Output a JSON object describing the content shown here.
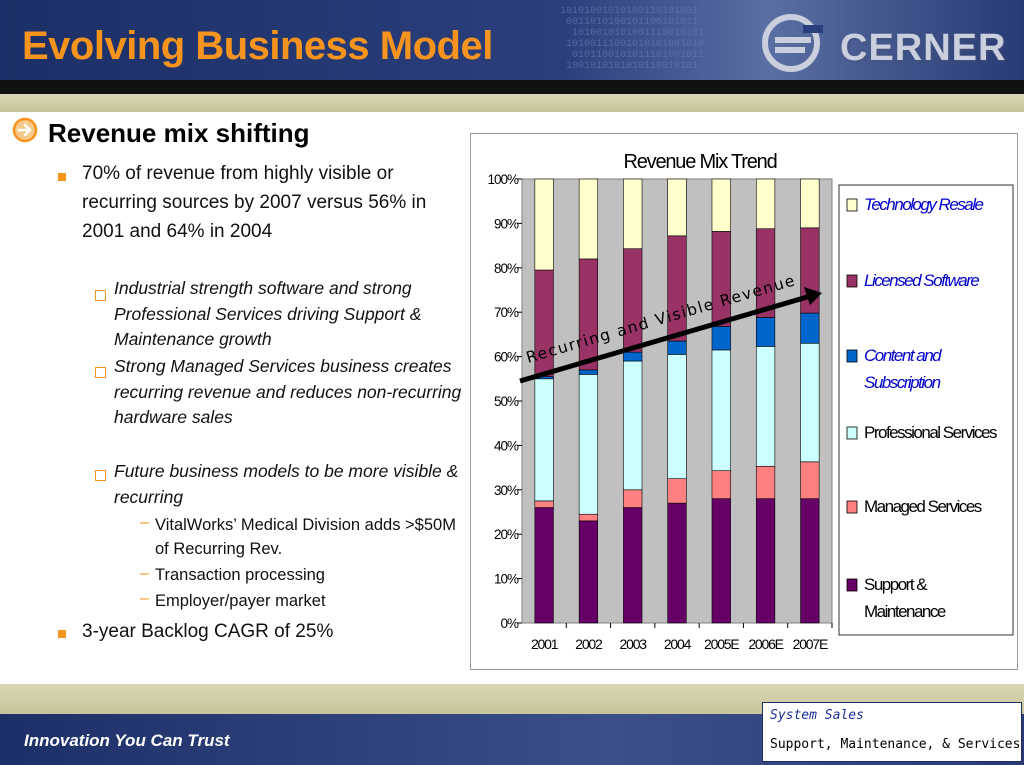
{
  "slide": {
    "title": "Evolving Business Model",
    "logo_text": "CERNER",
    "heading": "Revenue mix shifting",
    "bullets": [
      "70% of revenue from highly visible or recurring sources by 2007 versus 56% in 2001 and 64% in 2004",
      "3-year Backlog CAGR of 25%"
    ],
    "sub_bullets": [
      "Industrial strength software and strong Professional Services driving Support & Maintenance growth",
      "Strong Managed Services business creates recurring revenue and reduces non-recurring hardware sales",
      "Future business models to be more visible & recurring"
    ],
    "sub_sub_bullets": [
      "VitalWorks’ Medical Division adds >$50M of Recurring Rev.",
      "Transaction processing",
      "Employer/payer market"
    ],
    "sub_sub_marker": "–"
  },
  "footer": {
    "tagline": "Innovation You Can Trust",
    "callout_line1": "System Sales",
    "callout_line2": "Support, Maintenance, & Services"
  },
  "colors": {
    "title": "#f7941d",
    "header_navy": "#1c2f66",
    "plot_bg": "#c0c0c0"
  },
  "chart_data": {
    "type": "bar",
    "stacked": true,
    "title": "Revenue Mix Trend",
    "categories": [
      "2001",
      "2002",
      "2003",
      "2004",
      "2005E",
      "2006E",
      "2007E"
    ],
    "ylim": [
      0,
      100
    ],
    "yticks": [
      "0%",
      "10%",
      "20%",
      "30%",
      "40%",
      "50%",
      "60%",
      "70%",
      "80%",
      "90%",
      "100%"
    ],
    "grid": false,
    "legend_position": "right",
    "series": [
      {
        "name": "Support & Maintenance",
        "color": "#660066",
        "values": [
          26,
          23,
          26,
          27,
          28,
          28,
          28
        ]
      },
      {
        "name": "Managed Services",
        "color": "#ff8080",
        "values": [
          1.5,
          1.5,
          4,
          5.5,
          6.3,
          7.3,
          8.3
        ]
      },
      {
        "name": "Professional Services",
        "color": "#ccffff",
        "values": [
          27.5,
          31.5,
          29,
          28,
          27.2,
          27,
          26.7
        ]
      },
      {
        "name": "Content and Subscription",
        "color": "#0066cc",
        "values": [
          0.5,
          1,
          2,
          3,
          5.3,
          6.5,
          6.8
        ]
      },
      {
        "name": "Licensed Software",
        "color": "#993366",
        "values": [
          24,
          25,
          23.3,
          23.7,
          21.4,
          20,
          19.2
        ]
      },
      {
        "name": "Technology Resale",
        "color": "#ffffcc",
        "values": [
          20.5,
          18,
          15.7,
          12.8,
          11.8,
          11.2,
          11
        ]
      }
    ],
    "legend_italic_blue": [
      "Technology Resale",
      "Licensed Software",
      "Content and Subscription"
    ],
    "annotation": "Recurring and Visible Revenue"
  }
}
